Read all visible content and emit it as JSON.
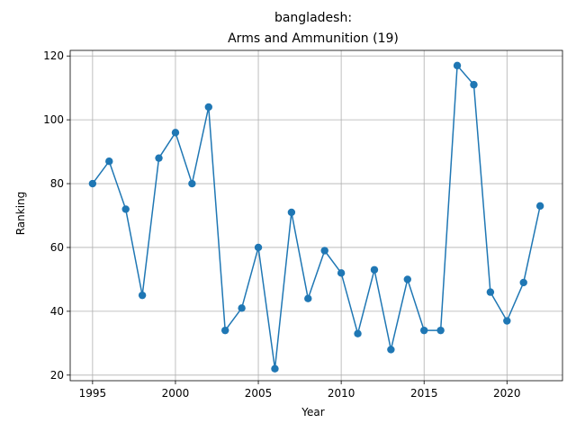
{
  "chart_data": {
    "type": "line",
    "title_line1": "bangladesh:",
    "title_line2": "Arms and Ammunition (19)",
    "xlabel": "Year",
    "ylabel": "Ranking",
    "xlim": [
      1993.65,
      1995.0,
      2023.35
    ],
    "xlim_note": "",
    "x_range": [
      1993.65,
      2023.35
    ],
    "y_range": [
      18.25,
      121.75
    ],
    "xticks": [
      1995,
      2000,
      2005,
      2010,
      2015,
      2020
    ],
    "yticks": [
      20,
      40,
      60,
      80,
      100,
      120
    ],
    "grid": true,
    "series": [
      {
        "color": "#1f77b4",
        "marker": "circle",
        "x": [
          1995,
          1996,
          1997,
          1998,
          1999,
          2000,
          2001,
          2002,
          2003,
          2004,
          2005,
          2006,
          2007,
          2008,
          2009,
          2010,
          2011,
          2012,
          2013,
          2014,
          2015,
          2016,
          2017,
          2018,
          2019,
          2020,
          2021,
          2022
        ],
        "y": [
          80,
          87,
          72,
          45,
          88,
          96,
          80,
          104,
          34,
          41,
          60,
          22,
          71,
          44,
          59,
          52,
          33,
          53,
          28,
          50,
          34,
          34,
          117,
          111,
          46,
          37,
          49,
          73
        ]
      }
    ]
  }
}
